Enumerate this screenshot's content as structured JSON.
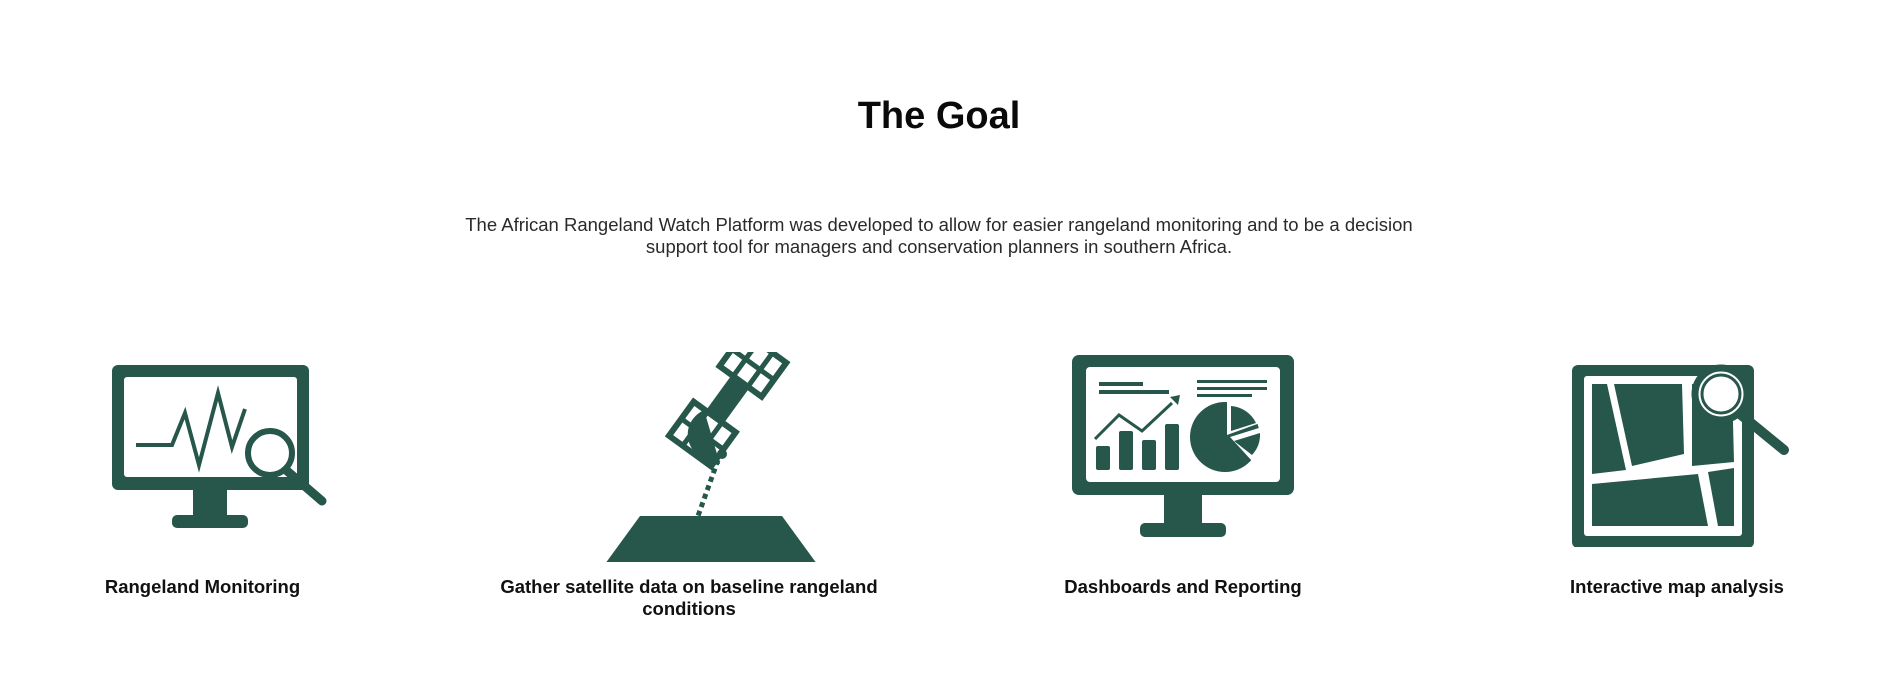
{
  "goal": {
    "title": "The Goal",
    "description": "The African Rangeland Watch Platform was developed to allow for easier rangeland monitoring and to be a decision support tool for managers and conservation planners in southern Africa."
  },
  "theme": {
    "icon_color": "#26574a"
  },
  "features": [
    {
      "label": "Rangeland Monitoring",
      "icon": "monitor-chart-magnifier-icon"
    },
    {
      "label": "Gather satellite data on baseline rangeland conditions",
      "icon": "satellite-icon"
    },
    {
      "label": "Dashboards and Reporting",
      "icon": "dashboard-monitor-icon"
    },
    {
      "label": "Interactive map analysis",
      "icon": "map-magnifier-icon"
    }
  ]
}
